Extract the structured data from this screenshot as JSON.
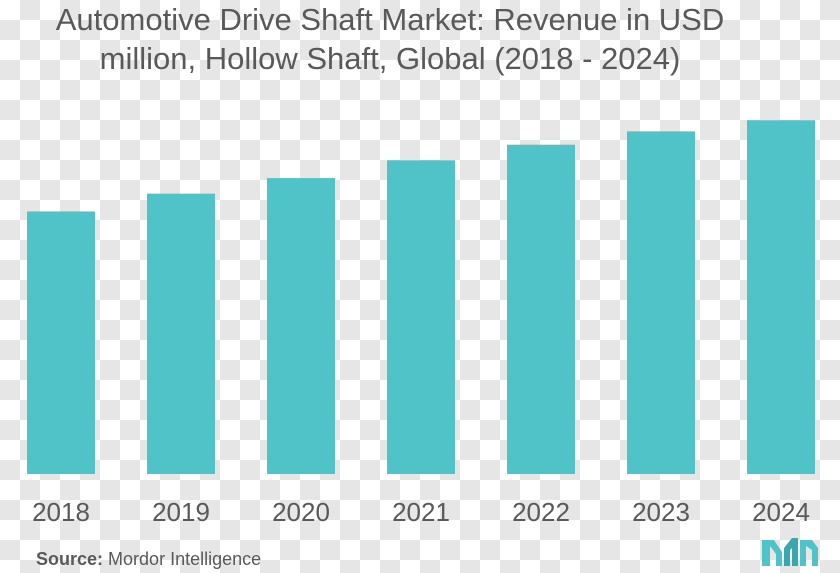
{
  "title": {
    "line1": "Automotive Drive Shaft Market: Revenue in USD",
    "line2": "million, Hollow Shaft, Global (2018 - 2024)"
  },
  "source": {
    "label": "Source:",
    "text": "Mordor Intelligence"
  },
  "logo": {
    "icon": "mordor-intelligence-logo-icon"
  },
  "colors": {
    "bar": "#4FC3C8",
    "text": "#595959",
    "logo": "#4FC3C8"
  },
  "chart_data": {
    "type": "bar",
    "title": "Automotive Drive Shaft Market: Revenue in USD million, Hollow Shaft, Global (2018 - 2024)",
    "xlabel": "",
    "ylabel": "",
    "categories": [
      "2018",
      "2019",
      "2020",
      "2021",
      "2022",
      "2023",
      "2024"
    ],
    "values": [
      59,
      63,
      66.5,
      70.5,
      74,
      77,
      79.5
    ],
    "ylim": [
      0,
      80
    ],
    "grid": false,
    "legend": "none"
  }
}
